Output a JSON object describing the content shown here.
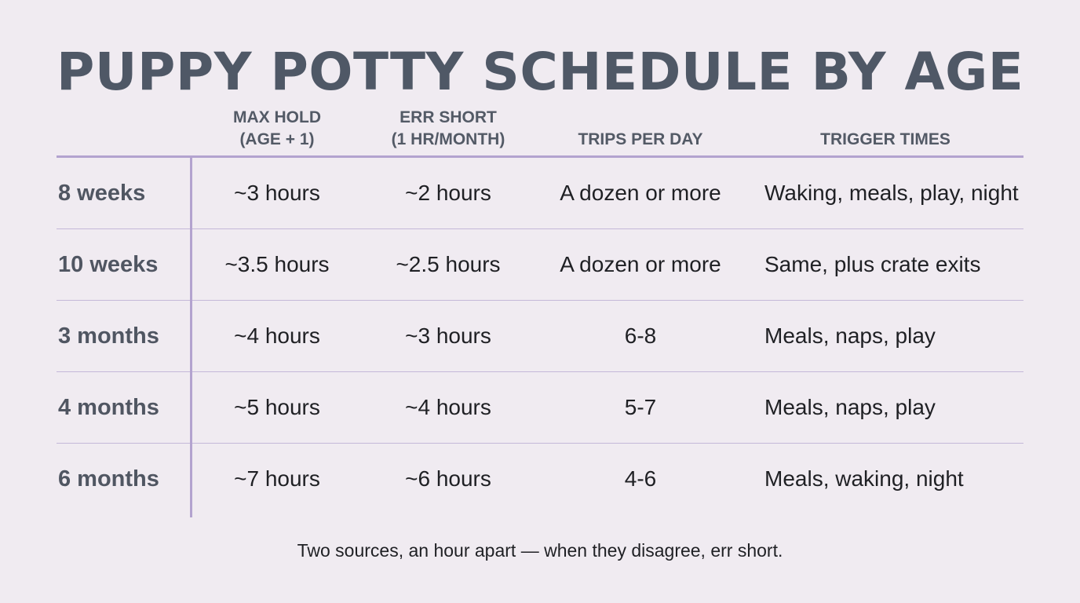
{
  "title": "PUPPY POTTY SCHEDULE BY AGE",
  "headers": {
    "age": "",
    "max_hold_line1": "MAX HOLD",
    "max_hold_line2": "(AGE + 1)",
    "err_short_line1": "ERR SHORT",
    "err_short_line2": "(1 HR/MONTH)",
    "trips_per_day": "TRIPS PER DAY",
    "trigger_times": "TRIGGER TIMES"
  },
  "rows": [
    {
      "age": "8 weeks",
      "max_hold": "~3 hours",
      "err_short": "~2 hours",
      "trips": "A dozen or more",
      "triggers": "Waking, meals, play, night"
    },
    {
      "age": "10 weeks",
      "max_hold": "~3.5 hours",
      "err_short": "~2.5 hours",
      "trips": "A dozen or more",
      "triggers": "Same, plus crate exits"
    },
    {
      "age": "3 months",
      "max_hold": "~4 hours",
      "err_short": "~3 hours",
      "trips": "6-8",
      "triggers": "Meals, naps, play"
    },
    {
      "age": "4 months",
      "max_hold": "~5 hours",
      "err_short": "~4 hours",
      "trips": "5-7",
      "triggers": "Meals, naps, play"
    },
    {
      "age": "6 months",
      "max_hold": "~7 hours",
      "err_short": "~6 hours",
      "trips": "4-6",
      "triggers": "Meals, waking, night"
    }
  ],
  "footnote": "Two sources, an hour apart — when they disagree, err short.",
  "colors": {
    "background": "#f0ebf1",
    "title": "#4f5866",
    "rule_accent": "#b3a3cf",
    "text": "#1f2024"
  }
}
